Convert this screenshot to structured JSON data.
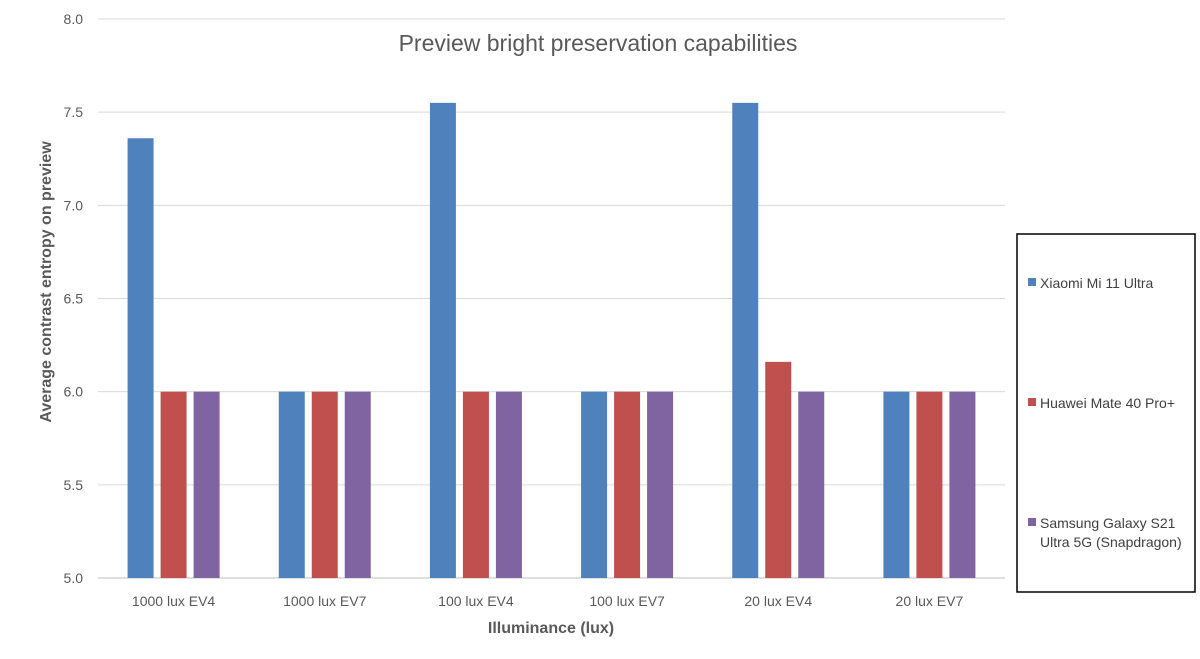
{
  "chart_data": {
    "type": "bar",
    "title": "Preview bright preservation capabilities",
    "xlabel": "Illuminance (lux)",
    "ylabel": "Average contrast entropy on preview",
    "categories": [
      "1000 lux EV4",
      "1000 lux EV7",
      "100 lux EV4",
      "100 lux EV7",
      "20 lux EV4",
      "20 lux EV7"
    ],
    "ylim": [
      5.0,
      8.0
    ],
    "yticks": [
      "5.0",
      "5.5",
      "6.0",
      "6.5",
      "7.0",
      "7.5",
      "8.0"
    ],
    "grid": true,
    "legend_position": "right",
    "series": [
      {
        "name": "Xiaomi Mi 11 Ultra",
        "color": "#4f81bd",
        "values": [
          7.36,
          6.0,
          7.55,
          6.0,
          7.55,
          6.0
        ]
      },
      {
        "name": "Huawei Mate 40 Pro+",
        "color": "#c0504d",
        "values": [
          6.0,
          6.0,
          6.0,
          6.0,
          6.16,
          6.0
        ]
      },
      {
        "name": "Samsung Galaxy S21 Ultra 5G (Snapdragon)",
        "color": "#8064a2",
        "values": [
          6.0,
          6.0,
          6.0,
          6.0,
          6.0,
          6.0
        ]
      }
    ]
  }
}
